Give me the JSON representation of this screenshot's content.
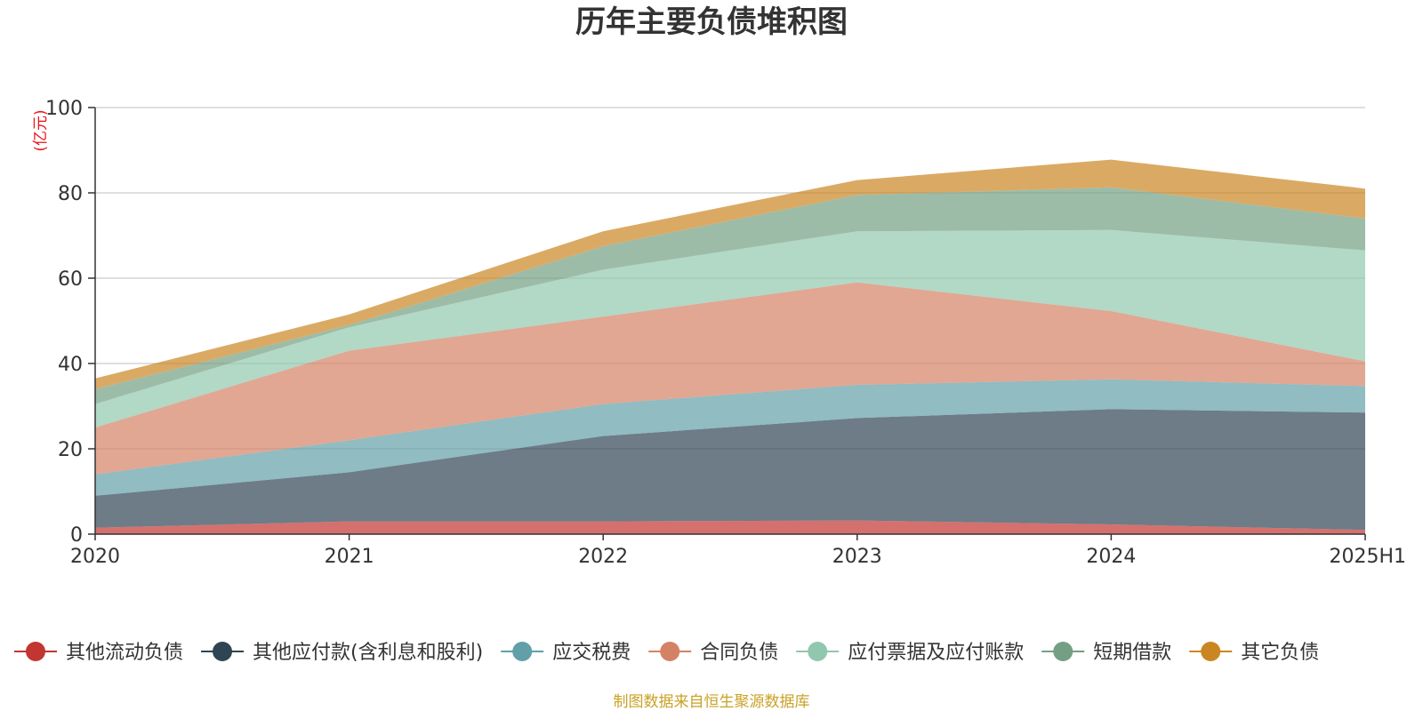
{
  "chart_data": {
    "type": "area",
    "stacked": true,
    "title": "历年主要负债堆积图",
    "unit_label": "(亿元)",
    "categories": [
      "2020",
      "2021",
      "2022",
      "2023",
      "2024",
      "2025H1"
    ],
    "ylim": [
      0,
      100
    ],
    "yticks": [
      0,
      20,
      40,
      60,
      80,
      100
    ],
    "grid": true,
    "legend_position": "bottom",
    "series": [
      {
        "name": "其他流动负债",
        "color": "#c23531",
        "values": [
          1.5,
          3.0,
          3.0,
          3.2,
          2.3,
          1.0
        ]
      },
      {
        "name": "其他应付款(含利息和股利)",
        "color": "#2f4554",
        "values": [
          7.5,
          11.5,
          20.0,
          24.0,
          27.0,
          27.5
        ]
      },
      {
        "name": "应交税费",
        "color": "#61a0a8",
        "values": [
          5.0,
          7.5,
          7.5,
          7.8,
          7.0,
          6.2
        ]
      },
      {
        "name": "合同负债",
        "color": "#d48265",
        "values": [
          11.0,
          21.0,
          20.5,
          24.0,
          16.0,
          5.8
        ]
      },
      {
        "name": "应付票据及应付账款",
        "color": "#91c7ae",
        "values": [
          5.5,
          5.5,
          11.0,
          12.0,
          19.0,
          26.0
        ]
      },
      {
        "name": "短期借款",
        "color": "#749f83",
        "values": [
          3.5,
          0.5,
          5.5,
          8.5,
          10.0,
          7.5
        ]
      },
      {
        "name": "其它负债",
        "color": "#ca8622",
        "values": [
          2.5,
          2.5,
          3.5,
          3.5,
          6.5,
          7.0
        ]
      }
    ]
  },
  "source_note": "制图数据来自恒生聚源数据库"
}
